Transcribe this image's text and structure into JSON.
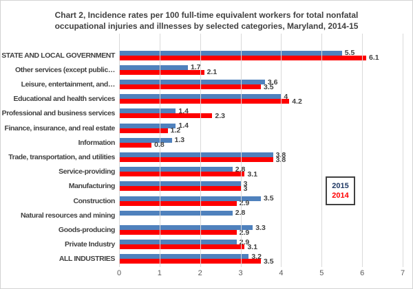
{
  "title_lines": [
    "Chart 2, Incidence rates per 100 full-time equivalent workers for total nonfatal",
    "occupational injuries and illnesses by selected categories, Maryland, 2014-15"
  ],
  "chart_data": {
    "type": "bar",
    "orientation": "horizontal",
    "title": "Chart 2, Incidence rates per 100 full-time equivalent workers for total nonfatal occupational injuries and illnesses by selected categories, Maryland, 2014-15",
    "categories": [
      "STATE AND LOCAL GOVERNMENT",
      "Other services (except public…",
      "Leisure, entertainment, and…",
      "Educational and health services",
      "Professional and business services",
      "Finance, insurance, and real estate",
      "Information",
      "Trade, transportation, and utilities",
      "Service-providing",
      "Manufacturing",
      "Construction",
      "Natural resources and mining",
      "Goods-producing",
      "Private Industry",
      "ALL INDUSTRIES"
    ],
    "series": [
      {
        "name": "2015",
        "color": "#4f81bd",
        "values": [
          5.5,
          1.7,
          3.6,
          4,
          1.4,
          1.4,
          1.3,
          3.8,
          2.8,
          3,
          3.5,
          2.8,
          3.3,
          2.9,
          3.2
        ],
        "labels": [
          "5.5",
          "1.7",
          "3.6",
          "4",
          "1.4",
          "1.4",
          "1.3",
          "3.8",
          "2.8",
          "3",
          "3.5",
          "2.8",
          "3.3",
          "2.9",
          "3.2"
        ]
      },
      {
        "name": "2014",
        "color": "#fe0000",
        "values": [
          6.1,
          2.1,
          3.5,
          4.2,
          2.3,
          1.2,
          0.8,
          3.8,
          3.1,
          3,
          2.9,
          null,
          2.9,
          3.1,
          3.5
        ],
        "labels": [
          "6.1",
          "2.1",
          "3.5",
          "4.2",
          "2.3",
          "1.2",
          "0.8",
          "3.8",
          "3.1",
          "3",
          "2.9",
          "",
          "2.9",
          "3.1",
          "3.5"
        ]
      }
    ],
    "xlim": [
      0,
      7
    ],
    "xticks": [
      "0",
      "1",
      "2",
      "3",
      "4",
      "5",
      "6",
      "7"
    ],
    "grid": true,
    "legend": {
      "position": "middle-right",
      "items": [
        {
          "label": "2015",
          "color": "#1f3864"
        },
        {
          "label": "2014",
          "color": "#ff0000"
        }
      ]
    }
  },
  "colors": {
    "title": "#404040",
    "category_label": "#404040",
    "value_label": "#404040",
    "tick_label": "#595959",
    "gridline": "#d9d9d9",
    "frame_border": "#d2d2d2",
    "legend_border": "#404040",
    "bar_2015": "#4f81bd",
    "bar_2014": "#fe0000"
  }
}
